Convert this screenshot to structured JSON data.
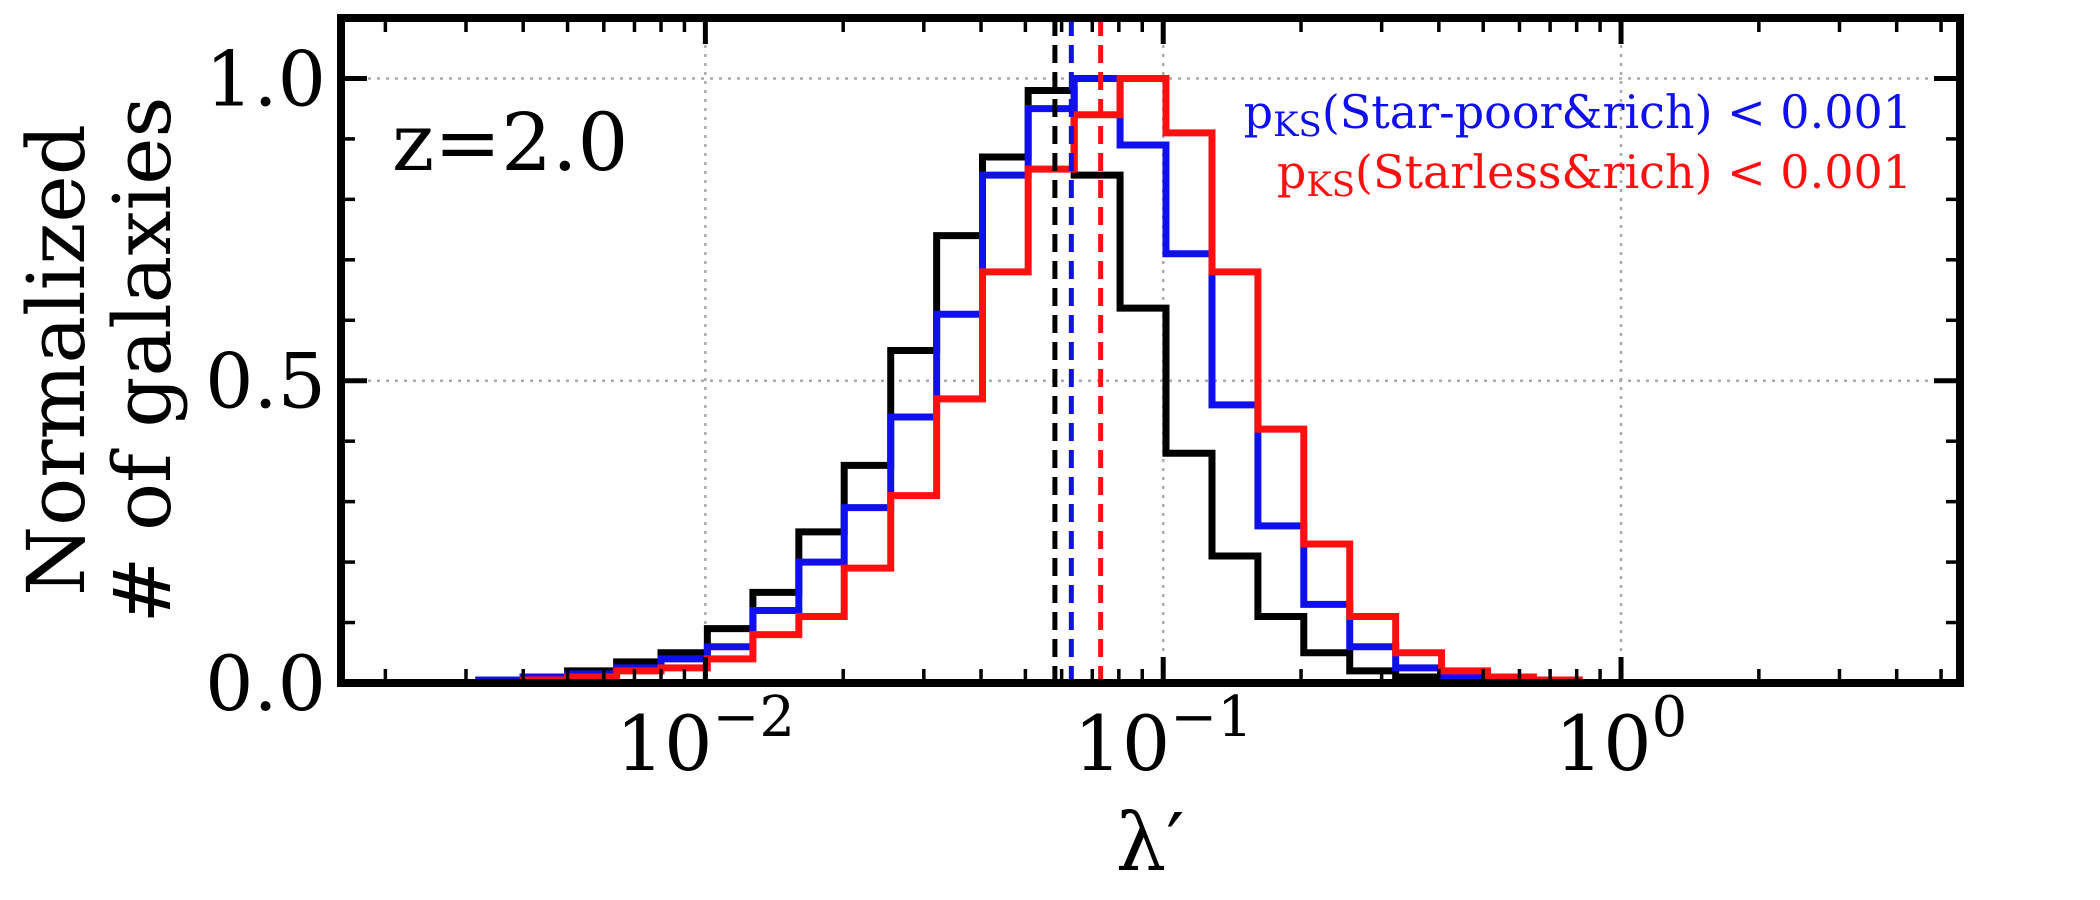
{
  "chart_data": {
    "type": "step-histogram",
    "xscale": "log",
    "xlim": [
      0.0016,
      5.5
    ],
    "ylim": [
      0,
      1.1
    ],
    "xlabel": "λ′",
    "ylabel_line1": "Normalized",
    "ylabel_line2": "# of galaxies",
    "annotation": "z=2.0",
    "grid": true,
    "x_ticks": [
      0.01,
      0.1,
      1
    ],
    "x_tick_labels": [
      {
        "base": "10",
        "exp": "−2"
      },
      {
        "base": "10",
        "exp": "−1"
      },
      {
        "base": "10",
        "exp": "0"
      }
    ],
    "y_ticks": [
      0.0,
      0.5,
      1.0
    ],
    "y_tick_labels": [
      "0.0",
      "0.5",
      "1.0"
    ],
    "bin_edges": [
      0.002,
      0.0025,
      0.0032,
      0.004,
      0.005,
      0.0064,
      0.008,
      0.0101,
      0.0127,
      0.016,
      0.0201,
      0.0254,
      0.032,
      0.0403,
      0.0507,
      0.0639,
      0.0805,
      0.1014,
      0.1278,
      0.161,
      0.2028,
      0.2555,
      0.3219,
      0.4055,
      0.5109,
      0.6436,
      0.8108,
      1.0214
    ],
    "series": [
      {
        "color": "#000000",
        "values": [
          0.0,
          0.0,
          0.005,
          0.01,
          0.02,
          0.035,
          0.05,
          0.09,
          0.15,
          0.25,
          0.36,
          0.55,
          0.74,
          0.87,
          0.98,
          0.84,
          0.62,
          0.38,
          0.21,
          0.11,
          0.05,
          0.02,
          0.01,
          0.005,
          0.0,
          0.0,
          0.0
        ],
        "median": 0.058
      },
      {
        "color": "#1010ee",
        "values": [
          0.0,
          0.0,
          0.005,
          0.01,
          0.015,
          0.025,
          0.04,
          0.06,
          0.12,
          0.2,
          0.29,
          0.44,
          0.61,
          0.84,
          0.95,
          1.0,
          0.89,
          0.71,
          0.46,
          0.26,
          0.13,
          0.06,
          0.025,
          0.01,
          0.005,
          0.0,
          0.0
        ],
        "median": 0.063
      },
      {
        "color": "#ff1010",
        "values": [
          0.0,
          0.0,
          0.0,
          0.005,
          0.01,
          0.02,
          0.025,
          0.04,
          0.08,
          0.11,
          0.19,
          0.31,
          0.47,
          0.68,
          0.85,
          0.94,
          1.0,
          0.91,
          0.68,
          0.42,
          0.23,
          0.11,
          0.05,
          0.02,
          0.01,
          0.005,
          0.0
        ],
        "median": 0.073
      }
    ],
    "ks_annotations": [
      {
        "p": "p",
        "sub": "KS",
        "text": "(Star-poor&rich) < 0.001",
        "color": "#1010ee"
      },
      {
        "p": "p",
        "sub": "KS",
        "text": "(Starless&rich) < 0.001",
        "color": "#ff1010"
      }
    ]
  }
}
